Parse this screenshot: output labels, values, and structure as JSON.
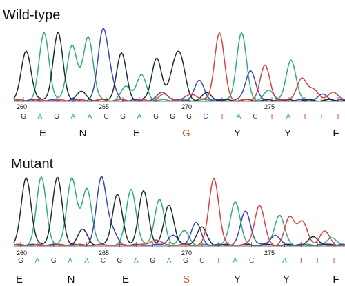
{
  "colors": {
    "A": "#2fae7a",
    "C": "#3a47b8",
    "G": "#1f2b3a",
    "T": "#d84040",
    "highlight": "#c85a2a",
    "text": "#111111"
  },
  "panels": [
    {
      "title": "Wild-type",
      "positions": [
        "260",
        "265",
        "270",
        "275"
      ],
      "bases": [
        "G",
        "A",
        "G",
        "A",
        "A",
        "C",
        "G",
        "A",
        "G",
        "G",
        "G",
        "C",
        "T",
        "A",
        "C",
        "T",
        "A",
        "T",
        "T",
        "T"
      ],
      "amino_acids": [
        "E",
        "N",
        "E",
        "G",
        "Y",
        "Y",
        "F"
      ],
      "highlight_aa_index": 3
    },
    {
      "title": "Mutant",
      "positions": [
        "260",
        "265",
        "270",
        "275"
      ],
      "bases": [
        "G",
        "A",
        "G",
        "A",
        "A",
        "C",
        "G",
        "A",
        "G",
        "A",
        "G",
        "C",
        "T",
        "A",
        "C",
        "T",
        "A",
        "T",
        "T",
        "T"
      ],
      "amino_acids": [
        "E",
        "N",
        "E",
        "S",
        "Y",
        "Y",
        "F"
      ],
      "highlight_aa_index": 3
    }
  ]
}
